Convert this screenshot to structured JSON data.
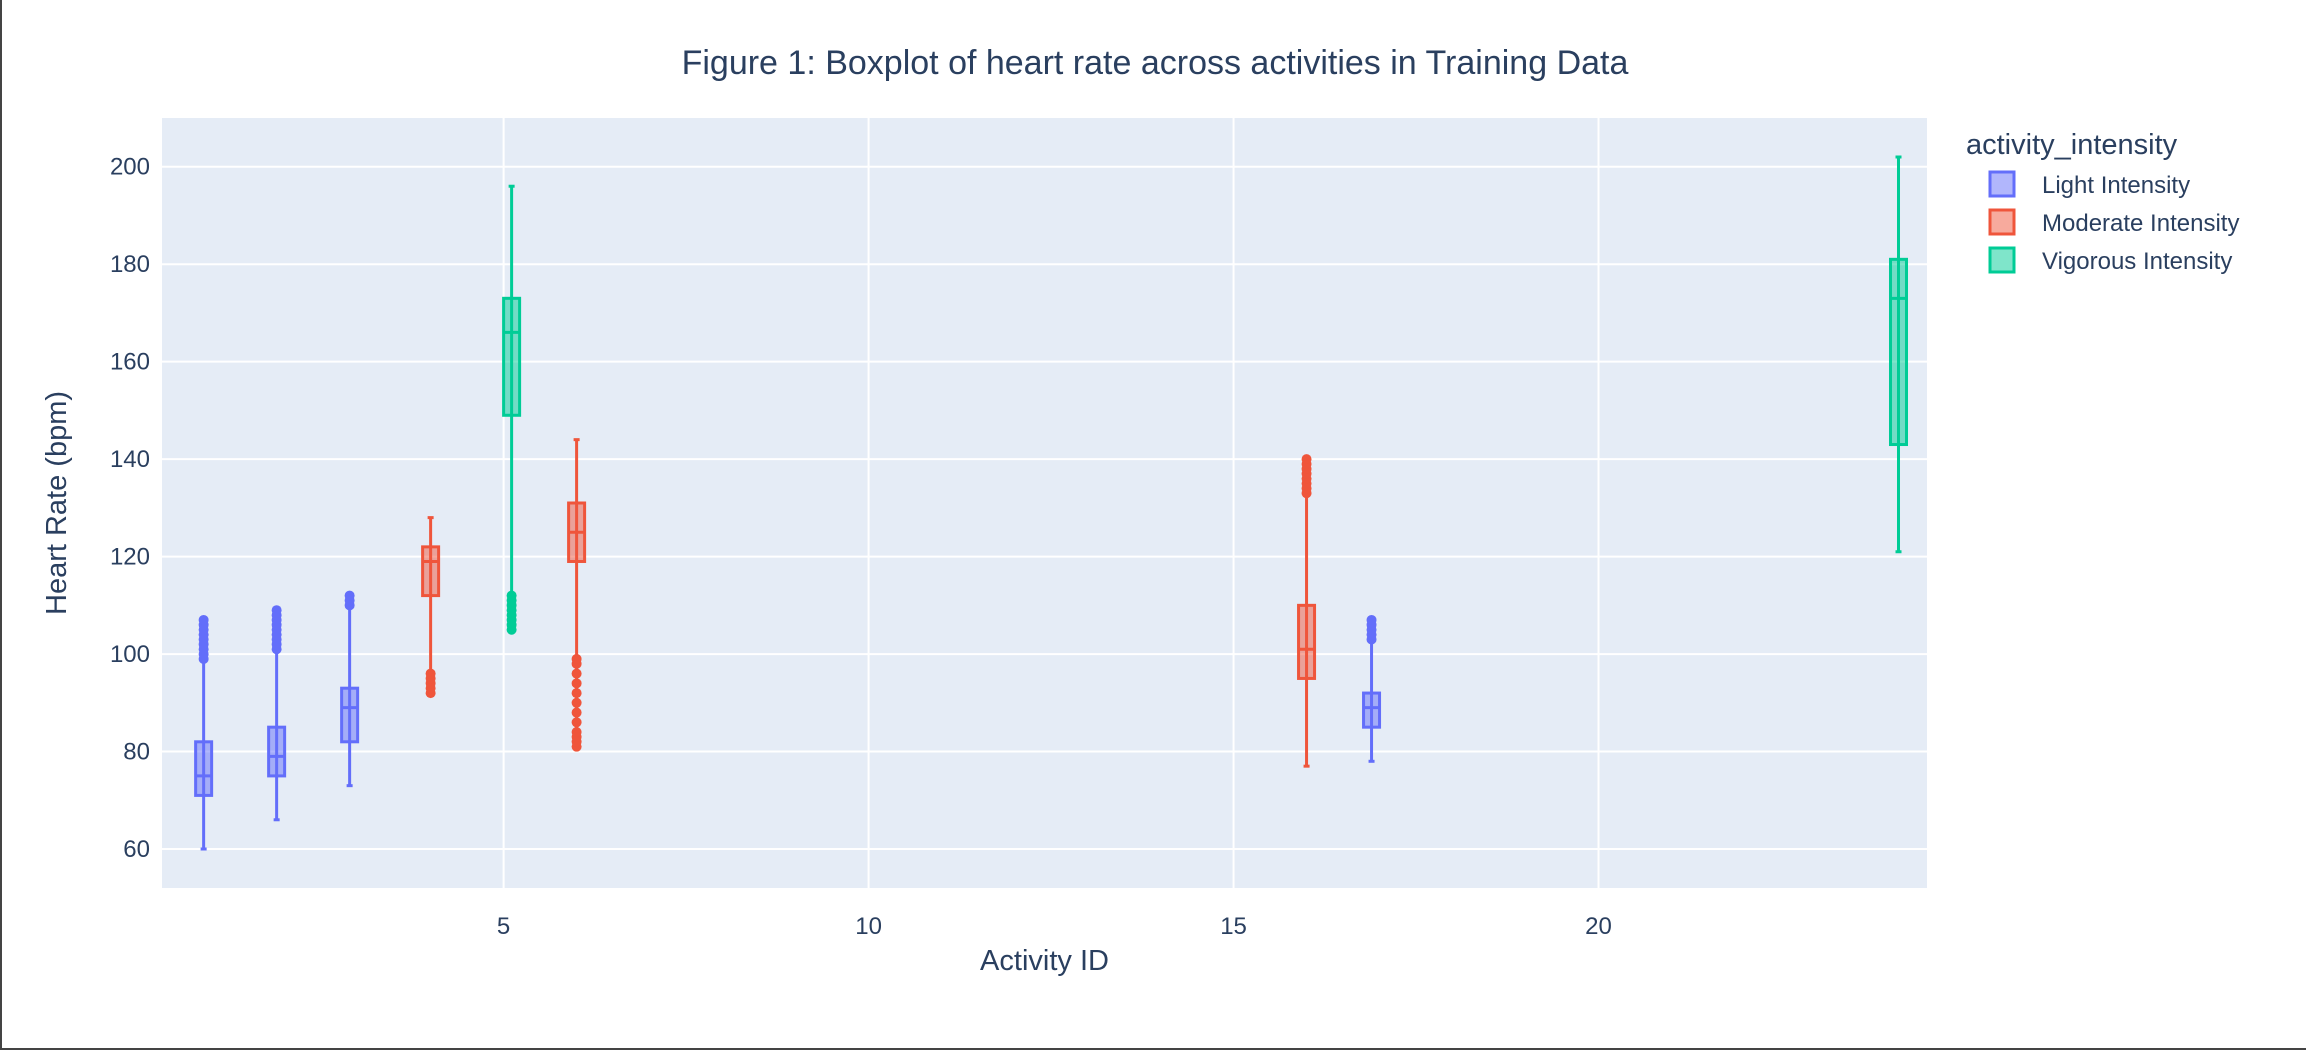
{
  "chart_data": {
    "type": "box",
    "title": "Figure 1: Boxplot of heart rate across activities in Training Data",
    "xlabel": "Activity ID",
    "ylabel": "Heart Rate (bpm)",
    "xlim": [
      0.32,
      24.5
    ],
    "ylim": [
      52,
      210
    ],
    "x_ticks": [
      5,
      10,
      15,
      20
    ],
    "y_ticks": [
      60,
      80,
      100,
      120,
      140,
      160,
      180,
      200
    ],
    "grid": true,
    "legend": {
      "title": "activity_intensity",
      "position": "top-right, outside plot"
    },
    "series": [
      {
        "name": "Light Intensity",
        "color": "#636efa",
        "boxes": [
          {
            "x": 1,
            "min": 60,
            "q1": 71,
            "median": 75,
            "q3": 82,
            "max": 99,
            "outliers": [
              99,
              100,
              101,
              102,
              103,
              104,
              105,
              106,
              107
            ]
          },
          {
            "x": 2,
            "min": 66,
            "q1": 75,
            "median": 79,
            "q3": 85,
            "max": 101,
            "outliers": [
              101,
              102,
              103,
              104,
              105,
              106,
              107,
              108,
              109
            ]
          },
          {
            "x": 3,
            "min": 73,
            "q1": 82,
            "median": 89,
            "q3": 93,
            "max": 110,
            "outliers": [
              110,
              111,
              112
            ]
          },
          {
            "x": 17,
            "min": 78,
            "q1": 85,
            "median": 89,
            "q3": 92,
            "max": 103,
            "outliers": [
              103,
              104,
              105,
              106,
              107
            ]
          }
        ]
      },
      {
        "name": "Moderate Intensity",
        "color": "#ef553b",
        "boxes": [
          {
            "x": 4,
            "min": 92,
            "q1": 112,
            "median": 119,
            "q3": 122,
            "max": 128,
            "outliers": [
              92,
              93,
              94,
              95,
              96
            ]
          },
          {
            "x": 6,
            "min": 81,
            "q1": 119,
            "median": 125,
            "q3": 131,
            "max": 144,
            "outliers": [
              81,
              82,
              83,
              84,
              86,
              88,
              90,
              92,
              94,
              96,
              98,
              99
            ]
          },
          {
            "x": 16,
            "min": 77,
            "q1": 95,
            "median": 101,
            "q3": 110,
            "max": 133,
            "outliers": [
              133,
              134,
              135,
              136,
              137,
              138,
              139,
              140
            ]
          }
        ]
      },
      {
        "name": "Vigorous Intensity",
        "color": "#00cc96",
        "boxes": [
          {
            "x": 5,
            "min": 105,
            "q1": 149,
            "median": 166,
            "q3": 173,
            "max": 196,
            "outliers": [
              105,
              106,
              107,
              108,
              109,
              110,
              111,
              112
            ]
          },
          {
            "x": 24,
            "min": 121,
            "q1": 143,
            "median": 173,
            "q3": 181,
            "max": 202,
            "outliers": []
          }
        ]
      }
    ]
  }
}
